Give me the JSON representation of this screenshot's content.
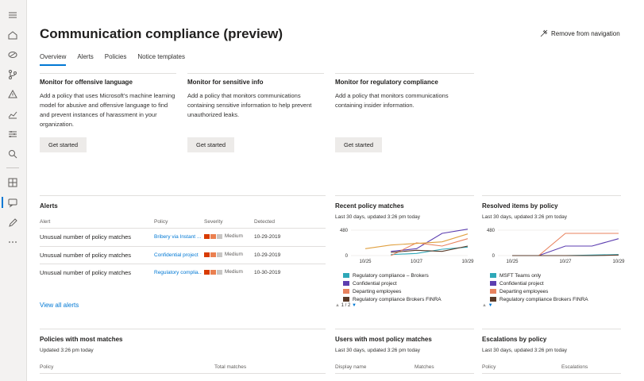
{
  "page": {
    "title": "Communication compliance (preview)",
    "remove_nav": "Remove from navigation"
  },
  "tabs": [
    "Overview",
    "Alerts",
    "Policies",
    "Notice templates"
  ],
  "cards": [
    {
      "title": "Monitor for offensive language",
      "desc": "Add a policy that uses Microsoft's machine learning model for abusive and offensive language to find and prevent instances of harassment in your organization.",
      "button": "Get started"
    },
    {
      "title": "Monitor for sensitive info",
      "desc": "Add a policy that monitors communications containing sensitive information to help prevent unauthorized leaks.",
      "button": "Get started"
    },
    {
      "title": "Monitor for regulatory compliance",
      "desc": "Add a policy that monitors communications containing insider information.",
      "button": "Get started"
    }
  ],
  "alerts": {
    "title": "Alerts",
    "columns": {
      "alert": "Alert",
      "policy": "Policy",
      "severity": "Severity",
      "detected": "Detected"
    },
    "rows": [
      {
        "alert": "Unusual number of policy matches",
        "policy": "Bribery via Instant ...",
        "severity": "Medium",
        "detected": "10-29-2019"
      },
      {
        "alert": "Unusual number of policy matches",
        "policy": "Confidential project",
        "severity": "Medium",
        "detected": "10-29-2019"
      },
      {
        "alert": "Unusual number of policy matches",
        "policy": "Regulatory complia...",
        "severity": "Medium",
        "detected": "10-30-2019"
      }
    ],
    "view_all": "View all alerts",
    "severity_colors": [
      "#d83b01",
      "#ea8050",
      "#c8c6c4"
    ]
  },
  "recent": {
    "title": "Recent policy matches",
    "subtitle": "Last 30 days, updated 3:26 pm today",
    "pager": "1 / 2"
  },
  "resolved": {
    "title": "Resolved items by policy",
    "subtitle": "Last 30 days, updated 3:26 pm today"
  },
  "policies_most": {
    "title": "Policies with most matches",
    "subtitle": "Updated 3:26 pm today",
    "col1": "Policy",
    "col2": "Total matches"
  },
  "users_most": {
    "title": "Users with most policy matches",
    "subtitle": "Last 30 days, updated 3:26 pm today",
    "col1": "Display name",
    "col2": "Matches"
  },
  "escalations": {
    "title": "Escalations by policy",
    "subtitle": "Last 30 days, updated 3:26 pm today",
    "col1": "Policy",
    "col2": "Escalations"
  },
  "chart_data": [
    {
      "type": "line",
      "title": "Recent policy matches",
      "x": [
        "10/25",
        "10/26",
        "10/27",
        "10/28",
        "10/29"
      ],
      "ylim": [
        0,
        480
      ],
      "yticks": [
        0,
        480
      ],
      "series": [
        {
          "name": "Regulatory compliance – Brokers",
          "color": "#2ea8b8",
          "values": [
            null,
            20,
            40,
            120,
            160
          ]
        },
        {
          "name": "Confidential project",
          "color": "#5c3eb0",
          "values": [
            null,
            80,
            130,
            420,
            500
          ]
        },
        {
          "name": "Departing employees",
          "color": "#e8825e",
          "values": [
            null,
            0,
            240,
            180,
            320
          ]
        },
        {
          "name": "Regulatory compliance Brokers FINRA",
          "color": "#5a3a28",
          "values": [
            null,
            60,
            100,
            80,
            180
          ]
        },
        {
          "name": "",
          "color": "#e0a040",
          "values": [
            130,
            200,
            230,
            260,
            410
          ]
        }
      ],
      "legend_visible": 4
    },
    {
      "type": "line",
      "title": "Resolved items by policy",
      "x": [
        "10/25",
        "10/26",
        "10/27",
        "10/28",
        "10/29"
      ],
      "ylim": [
        0,
        480
      ],
      "yticks": [
        0,
        480
      ],
      "series": [
        {
          "name": "MSFT Teams only",
          "color": "#2ea8b8",
          "values": [
            0,
            0,
            0,
            10,
            20
          ]
        },
        {
          "name": "Confidential project",
          "color": "#5c3eb0",
          "values": [
            0,
            0,
            180,
            180,
            320
          ]
        },
        {
          "name": "Departing employees",
          "color": "#e8825e",
          "values": [
            0,
            0,
            420,
            420,
            420
          ]
        },
        {
          "name": "Regulatory compliance Brokers FINRA",
          "color": "#5a3a28",
          "values": [
            0,
            0,
            0,
            0,
            10
          ]
        }
      ],
      "legend_visible": 4
    }
  ],
  "nav_icons": [
    "menu-icon",
    "home-icon",
    "data-loss-icon",
    "flow-icon",
    "alert-icon",
    "reports-icon",
    "policies-icon",
    "search-icon",
    "catalog-icon",
    "communication-compliance-icon",
    "edit-icon",
    "more-icon"
  ]
}
